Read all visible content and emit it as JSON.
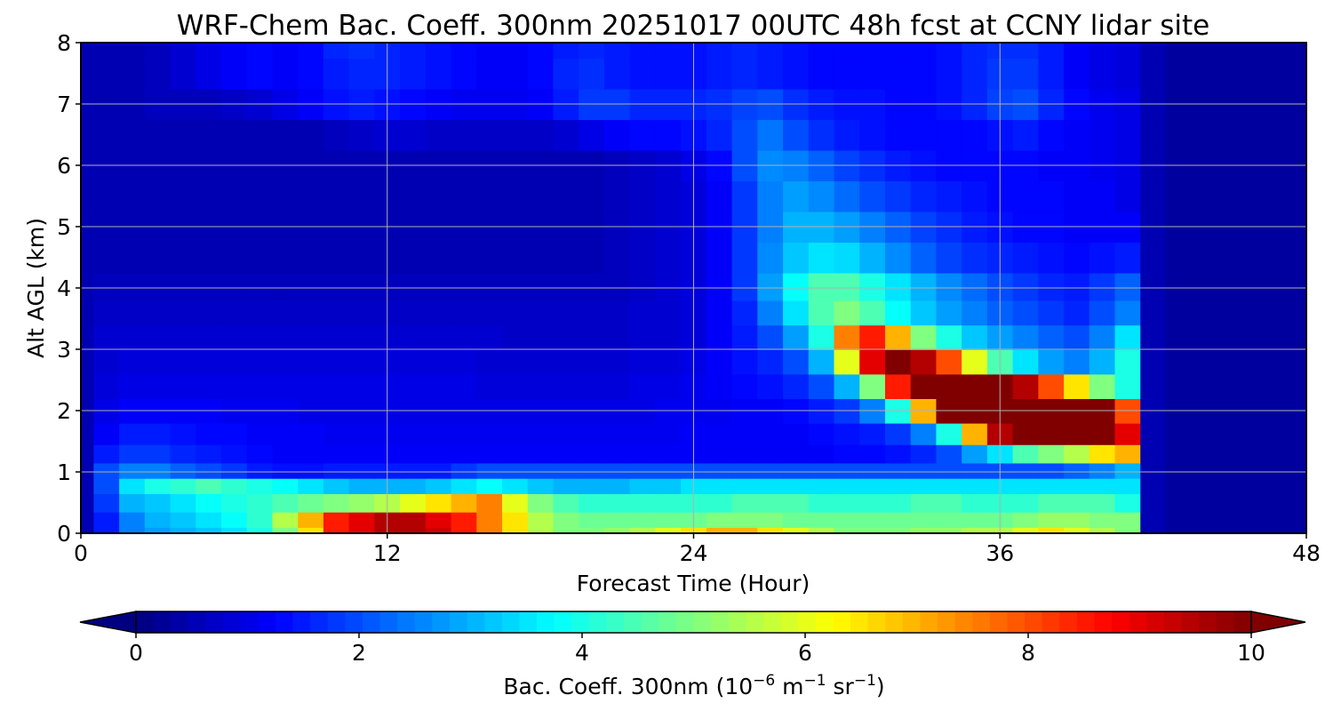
{
  "chart_data": {
    "type": "heatmap",
    "title": "WRF-Chem Bac. Coeff. 300nm  20251017 00UTC 48h fcst at CCNY lidar site",
    "xlabel": "Forecast Time (Hour)",
    "ylabel": "Alt AGL (km)",
    "xlim": [
      0,
      48
    ],
    "ylim": [
      0,
      8
    ],
    "xticks": [
      "0",
      "12",
      "24",
      "36",
      "48"
    ],
    "yticks": [
      "0",
      "1",
      "2",
      "3",
      "4",
      "5",
      "6",
      "7",
      "8"
    ],
    "grid": true,
    "colorscale": "jet",
    "colorbar": {
      "label_main": "Bac. Coeff. 300nm  (10",
      "label_exp1": "−6",
      "label_mid": " m",
      "label_exp2": "−1",
      "label_mid2": " sr",
      "label_exp3": "−1",
      "label_end": ")",
      "range": [
        0,
        10
      ],
      "ticks": [
        "0",
        "2",
        "4",
        "6",
        "8",
        "10"
      ],
      "extend": "both",
      "orientation": "horizontal"
    },
    "x_hours": [
      0,
      1,
      2,
      3,
      4,
      5,
      6,
      7,
      8,
      9,
      10,
      11,
      12,
      13,
      14,
      15,
      16,
      17,
      18,
      19,
      20,
      21,
      22,
      23,
      24,
      25,
      26,
      27,
      28,
      29,
      30,
      31,
      32,
      33,
      34,
      35,
      36,
      37,
      38,
      39,
      40,
      41,
      42,
      43,
      44,
      45,
      46,
      47,
      48
    ],
    "z_altitude_km": [
      0,
      0.2,
      0.5,
      0.8,
      1.0,
      1.3,
      1.6,
      2.0,
      2.4,
      2.8,
      3.2,
      3.6,
      4.0,
      4.5,
      5.0,
      5.5,
      6.0,
      6.5,
      7.0,
      7.5,
      8.0
    ],
    "values_by_altitude": [
      [
        0.5,
        1.5,
        2.5,
        2.8,
        3.0,
        3.2,
        3.5,
        4.0,
        5.0,
        6.5,
        8.5,
        9.0,
        9.5,
        9.5,
        9.2,
        8.5,
        7.5,
        6.5,
        5.5,
        5.0,
        5.0,
        5.2,
        5.5,
        6.0,
        6.5,
        7.0,
        7.0,
        6.5,
        6.0,
        5.5,
        5.0,
        5.0,
        5.0,
        5.2,
        5.2,
        5.5,
        5.5,
        6.0,
        6.5,
        6.0,
        5.5,
        5.0,
        0.5,
        0.3,
        0.3,
        0.3,
        0.3,
        0.3,
        0.3
      ],
      [
        0.5,
        1.5,
        2.5,
        3.0,
        3.2,
        3.5,
        3.8,
        4.2,
        5.5,
        7.0,
        8.5,
        9.0,
        9.5,
        9.5,
        9.0,
        8.5,
        7.5,
        6.5,
        5.5,
        5.0,
        4.8,
        4.8,
        4.8,
        4.8,
        4.8,
        5.0,
        5.0,
        5.0,
        4.8,
        4.8,
        4.8,
        4.8,
        4.8,
        4.8,
        4.8,
        4.8,
        4.8,
        5.0,
        5.2,
        5.2,
        5.0,
        5.0,
        0.5,
        0.3,
        0.3,
        0.3,
        0.3,
        0.3,
        0.3
      ],
      [
        0.5,
        1.8,
        3.0,
        3.2,
        3.5,
        3.8,
        4.0,
        4.2,
        4.5,
        4.8,
        5.0,
        5.2,
        5.5,
        6.0,
        6.5,
        7.0,
        7.5,
        6.0,
        5.0,
        4.5,
        4.2,
        4.2,
        4.2,
        4.2,
        4.2,
        4.2,
        4.5,
        4.5,
        4.5,
        4.2,
        4.2,
        4.2,
        4.2,
        4.5,
        4.5,
        4.2,
        4.2,
        4.2,
        4.5,
        4.5,
        4.5,
        4.0,
        0.5,
        0.3,
        0.3,
        0.3,
        0.3,
        0.3,
        0.3
      ],
      [
        0.5,
        2.0,
        3.5,
        4.0,
        4.2,
        4.5,
        4.2,
        4.0,
        3.8,
        3.5,
        3.2,
        3.0,
        3.0,
        3.0,
        3.2,
        3.5,
        3.8,
        3.5,
        3.2,
        3.0,
        3.0,
        3.0,
        3.2,
        3.2,
        3.5,
        3.5,
        3.5,
        3.5,
        3.5,
        3.5,
        3.5,
        3.5,
        3.5,
        3.5,
        3.5,
        3.5,
        3.5,
        3.5,
        3.5,
        3.5,
        3.5,
        3.5,
        0.5,
        0.3,
        0.3,
        0.3,
        0.3,
        0.3,
        0.3
      ],
      [
        0.5,
        2.0,
        2.5,
        2.5,
        2.2,
        2.0,
        1.8,
        1.5,
        1.4,
        1.4,
        1.5,
        1.5,
        1.5,
        1.5,
        1.5,
        1.8,
        2.0,
        2.0,
        2.0,
        2.0,
        2.0,
        2.0,
        2.0,
        2.0,
        2.0,
        2.0,
        2.0,
        2.0,
        2.0,
        2.0,
        2.0,
        2.0,
        2.0,
        2.0,
        2.0,
        2.0,
        2.0,
        2.0,
        2.0,
        2.2,
        2.5,
        3.0,
        0.5,
        0.3,
        0.3,
        0.3,
        0.3,
        0.3,
        0.3
      ],
      [
        0.5,
        1.5,
        1.8,
        1.8,
        1.6,
        1.5,
        1.4,
        1.3,
        1.2,
        1.2,
        1.2,
        1.2,
        1.2,
        1.2,
        1.2,
        1.2,
        1.2,
        1.2,
        1.2,
        1.2,
        1.2,
        1.2,
        1.2,
        1.2,
        1.2,
        1.2,
        1.2,
        1.2,
        1.2,
        1.2,
        1.3,
        1.3,
        1.4,
        1.6,
        2.0,
        2.8,
        3.5,
        4.5,
        5.0,
        5.5,
        6.5,
        7.0,
        0.5,
        0.3,
        0.3,
        0.3,
        0.3,
        0.3,
        0.3
      ],
      [
        0.5,
        1.2,
        1.5,
        1.5,
        1.4,
        1.3,
        1.3,
        1.2,
        1.2,
        1.2,
        1.1,
        1.1,
        1.1,
        1.1,
        1.1,
        1.1,
        1.1,
        1.1,
        1.1,
        1.1,
        1.1,
        1.1,
        1.1,
        1.1,
        1.2,
        1.2,
        1.2,
        1.2,
        1.2,
        1.3,
        1.4,
        1.5,
        1.8,
        2.5,
        4.0,
        7.0,
        9.5,
        10.5,
        10.5,
        10.5,
        10.5,
        9.0,
        0.5,
        0.3,
        0.3,
        0.3,
        0.3,
        0.3,
        0.3
      ],
      [
        0.5,
        1.0,
        1.2,
        1.2,
        1.2,
        1.2,
        1.1,
        1.1,
        1.1,
        1.0,
        1.0,
        1.0,
        1.0,
        1.0,
        1.0,
        1.0,
        1.0,
        1.0,
        1.0,
        1.0,
        1.0,
        1.0,
        1.0,
        1.1,
        1.1,
        1.1,
        1.2,
        1.2,
        1.3,
        1.5,
        1.8,
        2.5,
        4.0,
        7.0,
        10.0,
        10.5,
        10.5,
        10.5,
        10.5,
        10.5,
        10.0,
        8.0,
        0.5,
        0.3,
        0.3,
        0.3,
        0.3,
        0.3,
        0.3
      ],
      [
        0.5,
        0.9,
        1.0,
        1.0,
        1.0,
        1.0,
        1.0,
        1.0,
        1.0,
        1.0,
        1.0,
        1.0,
        1.0,
        1.0,
        1.0,
        1.0,
        0.9,
        0.9,
        0.9,
        0.9,
        0.9,
        0.9,
        1.0,
        1.0,
        1.1,
        1.2,
        1.3,
        1.4,
        1.6,
        2.0,
        3.0,
        5.0,
        8.5,
        10.5,
        10.5,
        10.5,
        10.5,
        9.5,
        8.0,
        6.5,
        5.0,
        4.0,
        0.5,
        0.3,
        0.3,
        0.3,
        0.3,
        0.3,
        0.3
      ],
      [
        0.5,
        0.8,
        0.9,
        0.9,
        0.9,
        0.9,
        0.9,
        0.9,
        0.9,
        0.9,
        0.9,
        0.9,
        0.9,
        0.9,
        0.9,
        0.9,
        0.8,
        0.8,
        0.8,
        0.8,
        0.8,
        0.8,
        0.9,
        0.9,
        1.0,
        1.2,
        1.4,
        1.6,
        2.0,
        3.0,
        6.0,
        9.0,
        10.0,
        9.5,
        8.0,
        6.0,
        4.5,
        3.5,
        2.8,
        2.5,
        3.0,
        4.0,
        0.5,
        0.3,
        0.3,
        0.3,
        0.3,
        0.3,
        0.3
      ],
      [
        0.5,
        0.8,
        0.8,
        0.8,
        0.8,
        0.8,
        0.8,
        0.8,
        0.8,
        0.8,
        0.8,
        0.8,
        0.8,
        0.8,
        0.8,
        0.8,
        0.8,
        0.7,
        0.7,
        0.7,
        0.7,
        0.7,
        0.8,
        0.8,
        0.9,
        1.2,
        1.5,
        2.0,
        2.8,
        4.0,
        7.5,
        8.5,
        7.0,
        5.0,
        4.0,
        3.2,
        2.8,
        2.5,
        2.2,
        2.0,
        2.5,
        3.5,
        0.5,
        0.3,
        0.3,
        0.3,
        0.3,
        0.3,
        0.3
      ],
      [
        0.5,
        0.7,
        0.7,
        0.7,
        0.7,
        0.7,
        0.7,
        0.7,
        0.7,
        0.7,
        0.7,
        0.7,
        0.7,
        0.7,
        0.7,
        0.7,
        0.7,
        0.7,
        0.7,
        0.7,
        0.7,
        0.7,
        0.8,
        0.8,
        0.9,
        1.2,
        1.6,
        2.5,
        3.5,
        4.5,
        5.0,
        4.5,
        3.8,
        3.2,
        2.8,
        2.5,
        2.2,
        2.0,
        1.8,
        1.6,
        2.0,
        2.5,
        0.5,
        0.3,
        0.3,
        0.3,
        0.3,
        0.3,
        0.3
      ],
      [
        0.5,
        0.6,
        0.6,
        0.6,
        0.6,
        0.6,
        0.6,
        0.6,
        0.6,
        0.6,
        0.6,
        0.6,
        0.6,
        0.6,
        0.6,
        0.6,
        0.6,
        0.6,
        0.6,
        0.6,
        0.6,
        0.6,
        0.7,
        0.8,
        0.9,
        1.2,
        1.8,
        2.8,
        3.8,
        4.5,
        4.5,
        4.0,
        3.5,
        3.0,
        2.6,
        2.3,
        2.0,
        1.8,
        1.6,
        1.5,
        1.8,
        2.2,
        0.5,
        0.3,
        0.3,
        0.3,
        0.3,
        0.3,
        0.3
      ],
      [
        0.5,
        0.5,
        0.5,
        0.5,
        0.5,
        0.5,
        0.5,
        0.5,
        0.5,
        0.5,
        0.5,
        0.5,
        0.5,
        0.5,
        0.5,
        0.5,
        0.5,
        0.5,
        0.5,
        0.5,
        0.5,
        0.6,
        0.7,
        0.8,
        0.9,
        1.2,
        1.8,
        2.6,
        3.2,
        3.5,
        3.4,
        3.0,
        2.6,
        2.2,
        1.9,
        1.7,
        1.6,
        1.5,
        1.4,
        1.3,
        1.4,
        1.5,
        0.5,
        0.3,
        0.3,
        0.3,
        0.3,
        0.3,
        0.3
      ],
      [
        0.5,
        0.5,
        0.5,
        0.5,
        0.5,
        0.5,
        0.5,
        0.5,
        0.5,
        0.5,
        0.5,
        0.5,
        0.5,
        0.5,
        0.5,
        0.5,
        0.5,
        0.5,
        0.5,
        0.5,
        0.5,
        0.6,
        0.7,
        0.8,
        0.9,
        1.2,
        1.8,
        2.5,
        3.0,
        3.0,
        2.8,
        2.5,
        2.2,
        1.9,
        1.7,
        1.5,
        1.4,
        1.3,
        1.3,
        1.2,
        1.2,
        1.2,
        0.5,
        0.3,
        0.3,
        0.3,
        0.3,
        0.3,
        0.3
      ],
      [
        0.5,
        0.5,
        0.5,
        0.5,
        0.5,
        0.5,
        0.5,
        0.5,
        0.5,
        0.5,
        0.5,
        0.5,
        0.5,
        0.5,
        0.5,
        0.5,
        0.5,
        0.5,
        0.5,
        0.5,
        0.5,
        0.6,
        0.7,
        0.8,
        0.9,
        1.2,
        1.8,
        2.5,
        2.8,
        2.6,
        2.3,
        2.0,
        1.8,
        1.6,
        1.5,
        1.4,
        1.3,
        1.3,
        1.3,
        1.2,
        1.2,
        1.0,
        0.5,
        0.3,
        0.3,
        0.3,
        0.3,
        0.3,
        0.3
      ],
      [
        0.5,
        0.5,
        0.5,
        0.5,
        0.5,
        0.5,
        0.5,
        0.5,
        0.5,
        0.5,
        0.5,
        0.5,
        0.5,
        0.5,
        0.5,
        0.5,
        0.5,
        0.5,
        0.5,
        0.5,
        0.5,
        0.6,
        0.7,
        0.8,
        1.0,
        1.3,
        2.0,
        2.6,
        2.5,
        2.2,
        1.9,
        1.7,
        1.5,
        1.4,
        1.3,
        1.3,
        1.3,
        1.3,
        1.2,
        1.2,
        1.1,
        1.0,
        0.5,
        0.3,
        0.3,
        0.3,
        0.3,
        0.3,
        0.3
      ],
      [
        0.5,
        0.5,
        0.5,
        0.5,
        0.5,
        0.5,
        0.5,
        0.5,
        0.5,
        0.5,
        0.6,
        0.7,
        0.8,
        0.8,
        0.7,
        0.7,
        0.7,
        0.7,
        0.7,
        0.8,
        1.0,
        1.2,
        1.3,
        1.3,
        1.4,
        1.6,
        2.0,
        2.4,
        2.0,
        1.7,
        1.5,
        1.4,
        1.3,
        1.3,
        1.3,
        1.3,
        1.4,
        1.5,
        1.3,
        1.2,
        1.1,
        1.0,
        0.5,
        0.3,
        0.3,
        0.3,
        0.3,
        0.3,
        0.3
      ],
      [
        0.5,
        0.5,
        0.5,
        0.6,
        0.6,
        0.6,
        0.7,
        0.8,
        1.0,
        1.2,
        1.4,
        1.5,
        1.4,
        1.3,
        1.2,
        1.1,
        1.1,
        1.1,
        1.2,
        1.5,
        1.8,
        1.8,
        1.6,
        1.6,
        1.6,
        1.7,
        1.9,
        2.0,
        1.7,
        1.5,
        1.4,
        1.4,
        1.3,
        1.3,
        1.4,
        1.6,
        1.9,
        2.0,
        1.6,
        1.3,
        1.1,
        1.0,
        0.5,
        0.3,
        0.3,
        0.3,
        0.3,
        0.3,
        0.3
      ],
      [
        0.5,
        0.5,
        0.5,
        0.6,
        0.8,
        1.0,
        1.2,
        1.3,
        1.2,
        1.3,
        1.5,
        1.6,
        1.6,
        1.5,
        1.4,
        1.3,
        1.2,
        1.2,
        1.3,
        1.6,
        1.7,
        1.5,
        1.4,
        1.4,
        1.4,
        1.5,
        1.6,
        1.5,
        1.4,
        1.3,
        1.3,
        1.3,
        1.3,
        1.3,
        1.4,
        1.6,
        1.8,
        1.8,
        1.5,
        1.2,
        1.0,
        0.9,
        0.5,
        0.3,
        0.3,
        0.3,
        0.3,
        0.3,
        0.3
      ],
      [
        0.5,
        0.5,
        0.5,
        0.6,
        0.8,
        1.0,
        1.2,
        1.3,
        1.2,
        1.3,
        1.6,
        1.7,
        1.6,
        1.5,
        1.4,
        1.3,
        1.2,
        1.2,
        1.3,
        1.5,
        1.6,
        1.5,
        1.4,
        1.4,
        1.4,
        1.5,
        1.6,
        1.5,
        1.4,
        1.3,
        1.3,
        1.3,
        1.3,
        1.3,
        1.4,
        1.6,
        1.7,
        1.7,
        1.5,
        1.2,
        1.0,
        0.9,
        0.5,
        0.3,
        0.3,
        0.3,
        0.3,
        0.3,
        0.3
      ]
    ]
  }
}
